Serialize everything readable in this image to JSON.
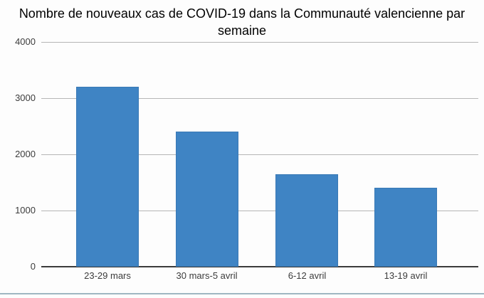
{
  "chart_data": {
    "type": "bar",
    "title": "Nombre de nouveaux cas de COVID-19 dans la Communauté valencienne par semaine",
    "categories": [
      "23-29 mars",
      "30 mars-5 avril",
      "6-12 avril",
      "13-19 avril"
    ],
    "values": [
      3200,
      2400,
      1650,
      1400
    ],
    "xlabel": "",
    "ylabel": "",
    "ylim": [
      0,
      4000
    ],
    "yticks": [
      0,
      1000,
      2000,
      3000,
      4000
    ],
    "grid": true,
    "legend": "none",
    "colors": {
      "bar_fill": "#3f84c4",
      "bar_border": "#3a79b5",
      "gridline": "#b6b6b6",
      "axis_line": "#3b3b3b",
      "tick_label": "#3c3c3c",
      "title": "#000000",
      "bottom_rule": "#9fb7c2",
      "background": "#fdfdfd"
    }
  }
}
